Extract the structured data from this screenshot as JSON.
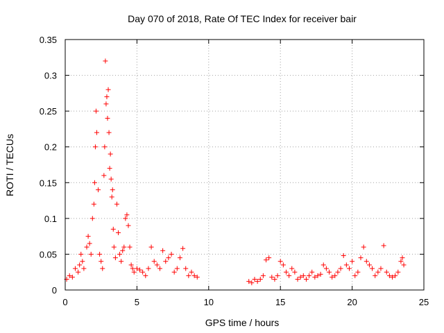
{
  "chart_data": {
    "type": "scatter",
    "title": "Day 070 of 2018, Rate Of TEC Index for receiver bair",
    "xlabel": "GPS time / hours",
    "ylabel": "ROTI / TECUs",
    "xlim": [
      0,
      25
    ],
    "ylim": [
      0,
      0.35
    ],
    "xticks": [
      0,
      5,
      10,
      15,
      20,
      25
    ],
    "yticks": [
      0,
      0.05,
      0.1,
      0.15,
      0.2,
      0.25,
      0.3,
      0.35
    ],
    "xtick_labels": [
      "0",
      "5",
      "10",
      "15",
      "20",
      "25"
    ],
    "ytick_labels": [
      "0",
      "0.05",
      "0.1",
      "0.15",
      "0.2",
      "0.25",
      "0.3",
      "0.35"
    ],
    "grid": true,
    "marker": "+",
    "color": "#ff0000",
    "series": [
      {
        "name": "ROTI",
        "x": [
          0.1,
          0.3,
          0.5,
          0.7,
          0.9,
          1.0,
          1.1,
          1.2,
          1.3,
          1.5,
          1.6,
          1.7,
          1.8,
          1.9,
          2.0,
          2.05,
          2.1,
          2.15,
          2.2,
          2.3,
          2.4,
          2.5,
          2.6,
          2.7,
          2.75,
          2.8,
          2.85,
          2.9,
          2.95,
          3.0,
          3.05,
          3.1,
          3.15,
          3.2,
          3.25,
          3.3,
          3.35,
          3.4,
          3.5,
          3.6,
          3.7,
          3.8,
          3.9,
          4.0,
          4.1,
          4.2,
          4.3,
          4.4,
          4.5,
          4.6,
          4.7,
          4.8,
          5.0,
          5.2,
          5.4,
          5.6,
          5.8,
          6.0,
          6.2,
          6.4,
          6.6,
          6.8,
          7.0,
          7.2,
          7.4,
          7.6,
          7.8,
          8.0,
          8.2,
          8.4,
          8.6,
          8.8,
          9.0,
          9.2,
          12.8,
          13.0,
          13.2,
          13.4,
          13.6,
          13.8,
          14.0,
          14.2,
          14.4,
          14.6,
          14.8,
          15.0,
          15.2,
          15.4,
          15.6,
          15.8,
          16.0,
          16.2,
          16.4,
          16.6,
          16.8,
          17.0,
          17.2,
          17.4,
          17.6,
          17.8,
          18.0,
          18.2,
          18.4,
          18.6,
          18.8,
          19.0,
          19.2,
          19.4,
          19.6,
          19.8,
          20.0,
          20.2,
          20.4,
          20.6,
          20.8,
          21.0,
          21.2,
          21.4,
          21.6,
          21.8,
          22.0,
          22.2,
          22.4,
          22.6,
          22.8,
          23.0,
          23.2,
          23.4,
          23.5,
          23.6
        ],
        "y": [
          0.015,
          0.02,
          0.018,
          0.03,
          0.025,
          0.035,
          0.05,
          0.04,
          0.03,
          0.06,
          0.075,
          0.065,
          0.05,
          0.1,
          0.12,
          0.15,
          0.2,
          0.25,
          0.22,
          0.14,
          0.05,
          0.04,
          0.03,
          0.16,
          0.2,
          0.32,
          0.26,
          0.27,
          0.24,
          0.28,
          0.22,
          0.17,
          0.19,
          0.155,
          0.13,
          0.14,
          0.085,
          0.06,
          0.045,
          0.12,
          0.08,
          0.05,
          0.04,
          0.055,
          0.06,
          0.1,
          0.105,
          0.09,
          0.06,
          0.035,
          0.03,
          0.025,
          0.03,
          0.028,
          0.025,
          0.02,
          0.03,
          0.06,
          0.04,
          0.035,
          0.03,
          0.055,
          0.04,
          0.045,
          0.05,
          0.025,
          0.03,
          0.045,
          0.058,
          0.03,
          0.02,
          0.025,
          0.02,
          0.018,
          0.012,
          0.01,
          0.015,
          0.012,
          0.015,
          0.02,
          0.042,
          0.045,
          0.018,
          0.015,
          0.02,
          0.04,
          0.035,
          0.025,
          0.02,
          0.03,
          0.025,
          0.015,
          0.018,
          0.02,
          0.015,
          0.02,
          0.025,
          0.018,
          0.02,
          0.022,
          0.035,
          0.03,
          0.025,
          0.018,
          0.02,
          0.025,
          0.03,
          0.048,
          0.035,
          0.03,
          0.04,
          0.02,
          0.025,
          0.045,
          0.06,
          0.04,
          0.035,
          0.03,
          0.02,
          0.025,
          0.03,
          0.062,
          0.025,
          0.02,
          0.018,
          0.02,
          0.025,
          0.04,
          0.045,
          0.035
        ]
      }
    ]
  }
}
